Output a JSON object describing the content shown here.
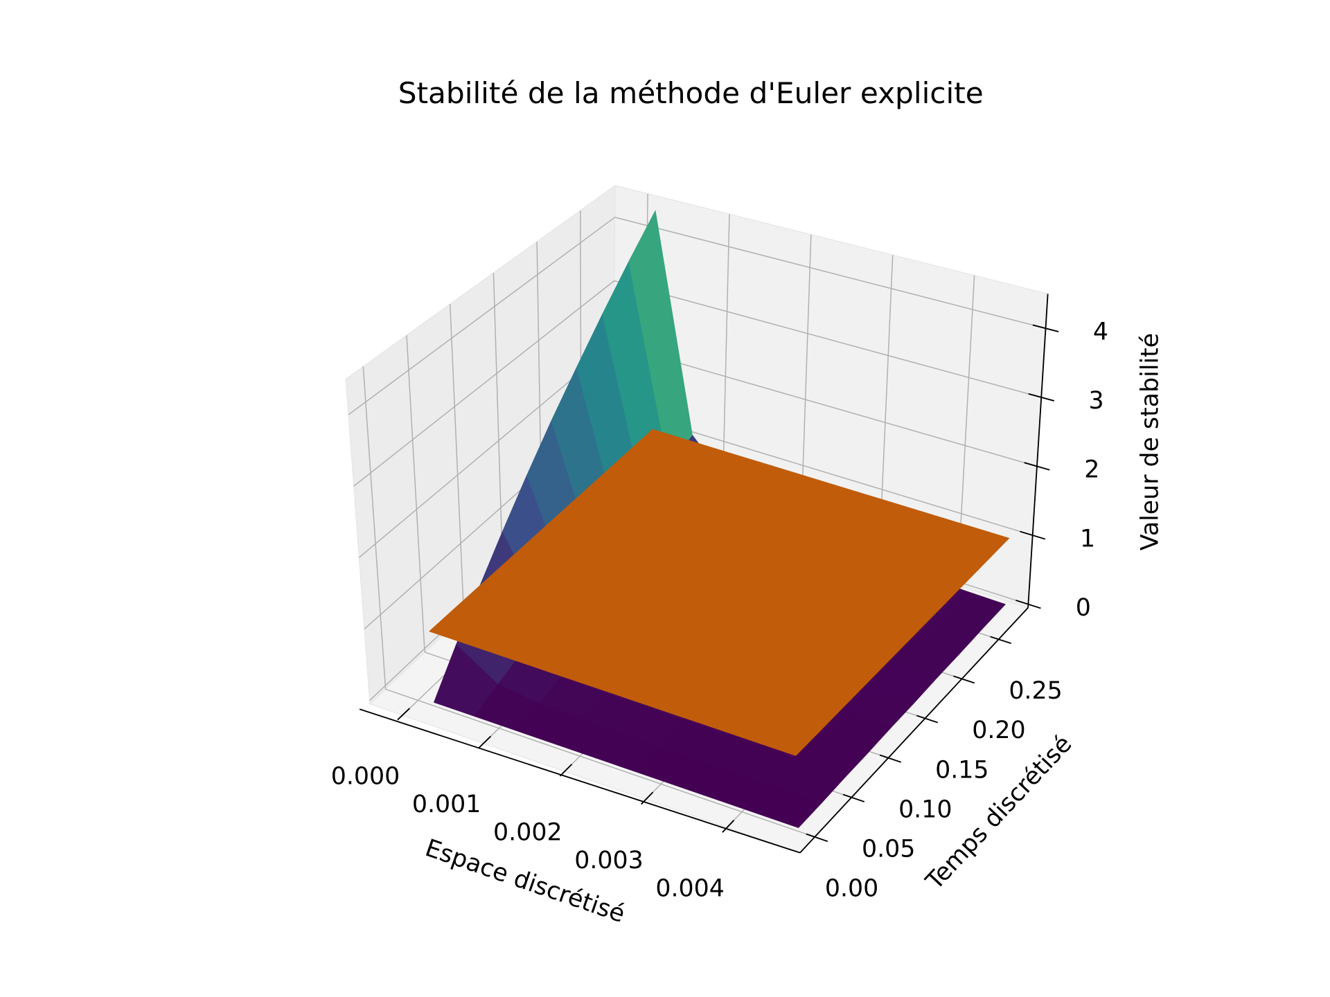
{
  "chart_data": {
    "type": "surface3d",
    "title": "Stabilité de la méthode d'Euler explicite",
    "xlabel": "Espace discrétisé",
    "ylabel": "Temps discrétisé",
    "zlabel": "Valeur de stabilité",
    "x": [
      0.0002,
      0.0007,
      0.0012,
      0.0017,
      0.0022,
      0.0027,
      0.0032,
      0.0037,
      0.0042,
      0.0047
    ],
    "y": [
      0,
      0.0311,
      0.0622,
      0.0933,
      0.1244,
      0.1556,
      0.1867,
      0.2178,
      0.2489,
      0.28
    ],
    "xlim": [
      -0.0004,
      0.0049
    ],
    "ylim": [
      -0.02,
      0.29
    ],
    "zlim": [
      -0.05,
      4.5
    ],
    "xticks": [
      {
        "value": 0,
        "label": "0.000"
      },
      {
        "value": 0.001,
        "label": "0.001"
      },
      {
        "value": 0.002,
        "label": "0.002"
      },
      {
        "value": 0.003,
        "label": "0.003"
      },
      {
        "value": 0.004,
        "label": "0.004"
      }
    ],
    "yticks": [
      {
        "value": 0,
        "label": "0.00"
      },
      {
        "value": 0.05,
        "label": "0.05"
      },
      {
        "value": 0.1,
        "label": "0.10"
      },
      {
        "value": 0.15,
        "label": "0.15"
      },
      {
        "value": 0.2,
        "label": "0.20"
      },
      {
        "value": 0.25,
        "label": "0.25"
      }
    ],
    "zticks": [
      0,
      1,
      2,
      3,
      4
    ],
    "grid": true,
    "series": [
      {
        "colormap": "viridis",
        "z": [
          [
            0,
            0.49,
            0.98,
            1.47,
            1.96,
            2.45,
            2.93,
            3.42,
            3.91,
            4.4
          ],
          [
            0,
            0.12,
            0.24,
            0.37,
            0.49,
            0.61,
            0.73,
            0.86,
            0.98,
            1.1
          ],
          [
            0,
            0.05,
            0.11,
            0.16,
            0.22,
            0.27,
            0.33,
            0.38,
            0.43,
            0.49
          ],
          [
            0,
            0.03,
            0.06,
            0.09,
            0.12,
            0.15,
            0.18,
            0.21,
            0.24,
            0.28
          ],
          [
            0,
            0.02,
            0.04,
            0.06,
            0.08,
            0.1,
            0.12,
            0.14,
            0.16,
            0.18
          ],
          [
            0,
            0.01,
            0.03,
            0.04,
            0.05,
            0.07,
            0.08,
            0.1,
            0.11,
            0.12
          ],
          [
            0,
            0.01,
            0.02,
            0.03,
            0.04,
            0.05,
            0.06,
            0.07,
            0.08,
            0.09
          ],
          [
            0,
            0.01,
            0.02,
            0.02,
            0.03,
            0.04,
            0.05,
            0.05,
            0.06,
            0.07
          ],
          [
            0,
            0.01,
            0.01,
            0.02,
            0.02,
            0.03,
            0.04,
            0.04,
            0.05,
            0.05
          ],
          [
            0,
            0,
            0.01,
            0.01,
            0.02,
            0.02,
            0.03,
            0.03,
            0.04,
            0.04
          ]
        ]
      },
      {
        "color": "#c15c0a",
        "z": [
          [
            1,
            1,
            1,
            1,
            1,
            1,
            1,
            1,
            1,
            1
          ],
          [
            1,
            1,
            1,
            1,
            1,
            1,
            1,
            1,
            1,
            1
          ],
          [
            1,
            1,
            1,
            1,
            1,
            1,
            1,
            1,
            1,
            1
          ],
          [
            1,
            1,
            1,
            1,
            1,
            1,
            1,
            1,
            1,
            1
          ],
          [
            1,
            1,
            1,
            1,
            1,
            1,
            1,
            1,
            1,
            1
          ],
          [
            1,
            1,
            1,
            1,
            1,
            1,
            1,
            1,
            1,
            1
          ],
          [
            1,
            1,
            1,
            1,
            1,
            1,
            1,
            1,
            1,
            1
          ],
          [
            1,
            1,
            1,
            1,
            1,
            1,
            1,
            1,
            1,
            1
          ],
          [
            1,
            1,
            1,
            1,
            1,
            1,
            1,
            1,
            1,
            1
          ],
          [
            1,
            1,
            1,
            1,
            1,
            1,
            1,
            1,
            1,
            1
          ]
        ]
      }
    ]
  }
}
